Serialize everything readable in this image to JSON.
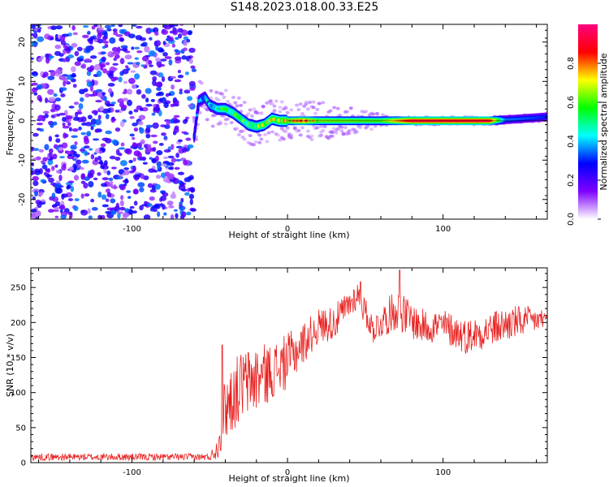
{
  "title": "S148.2023.018.00.33.E25",
  "chart_data": [
    {
      "type": "heatmap",
      "title": "",
      "xlabel": "Height of straight line (km)",
      "ylabel": "Frequency (Hz)",
      "xlim": [
        -165,
        167
      ],
      "ylim": [
        -25,
        24.5
      ],
      "x_ticks": [
        -100,
        0,
        100
      ],
      "y_ticks": [
        -20,
        -10,
        0,
        10,
        20
      ],
      "colorbar": {
        "label": "Normalized spectral amplitude",
        "range": [
          0,
          1
        ],
        "ticks": [
          0.0,
          0.2,
          0.4,
          0.6,
          0.8
        ],
        "tick_labels": [
          "0.0",
          "0.2",
          "0.4",
          "0.6",
          "0.8"
        ],
        "colors": [
          "#ffffff",
          "#7f00ff",
          "#0000ff",
          "#00ffff",
          "#00ff00",
          "#ffff00",
          "#ff0000",
          "#ff0080"
        ]
      },
      "noise_region": {
        "x_range": [
          -165,
          -60
        ],
        "freq_range": [
          -25,
          24.5
        ],
        "amplitude": 0.3
      },
      "ridge": [
        {
          "x": -60,
          "freq": -4
        },
        {
          "x": -57,
          "freq": 5
        },
        {
          "x": -53,
          "freq": 6
        },
        {
          "x": -50,
          "freq": 4
        },
        {
          "x": -45,
          "freq": 3
        },
        {
          "x": -40,
          "freq": 3
        },
        {
          "x": -35,
          "freq": 2
        },
        {
          "x": -30,
          "freq": 0.5
        },
        {
          "x": -25,
          "freq": -1
        },
        {
          "x": -20,
          "freq": -1.5
        },
        {
          "x": -15,
          "freq": -1
        },
        {
          "x": -10,
          "freq": 0.5
        },
        {
          "x": -5,
          "freq": 0
        },
        {
          "x": 0,
          "freq": 0
        },
        {
          "x": 20,
          "freq": 0
        },
        {
          "x": 60,
          "freq": 0
        },
        {
          "x": 100,
          "freq": 0
        },
        {
          "x": 130,
          "freq": 0
        },
        {
          "x": 150,
          "freq": 0.5
        },
        {
          "x": 167,
          "freq": 1
        }
      ],
      "ridge_amplitude": [
        {
          "x": -60,
          "amp": 0.3
        },
        {
          "x": -50,
          "amp": 0.45
        },
        {
          "x": -40,
          "amp": 0.55
        },
        {
          "x": -20,
          "amp": 0.6
        },
        {
          "x": 0,
          "amp": 0.7
        },
        {
          "x": 10,
          "amp": 0.85
        },
        {
          "x": 20,
          "amp": 0.65
        },
        {
          "x": 60,
          "amp": 0.6
        },
        {
          "x": 80,
          "amp": 0.9
        },
        {
          "x": 130,
          "amp": 0.9
        },
        {
          "x": 140,
          "amp": 0.35
        },
        {
          "x": 167,
          "amp": 0.3
        }
      ]
    },
    {
      "type": "line",
      "title": "",
      "xlabel": "Height of straight line (km)",
      "ylabel": "SNR (10 * v/v)",
      "xlim": [
        -165,
        167
      ],
      "ylim": [
        0,
        278
      ],
      "x_ticks": [
        -100,
        0,
        100
      ],
      "y_ticks": [
        0,
        50,
        100,
        150,
        200,
        250
      ],
      "color": "#e8201f",
      "envelope": [
        {
          "x": -165,
          "mean": 8,
          "spread": 5
        },
        {
          "x": -50,
          "mean": 8,
          "spread": 5
        },
        {
          "x": -45,
          "mean": 20,
          "spread": 15
        },
        {
          "x": -40,
          "mean": 80,
          "spread": 50
        },
        {
          "x": -30,
          "mean": 110,
          "spread": 50
        },
        {
          "x": -20,
          "mean": 120,
          "spread": 50
        },
        {
          "x": -10,
          "mean": 130,
          "spread": 40
        },
        {
          "x": 0,
          "mean": 145,
          "spread": 40
        },
        {
          "x": 10,
          "mean": 170,
          "spread": 30
        },
        {
          "x": 20,
          "mean": 195,
          "spread": 25
        },
        {
          "x": 30,
          "mean": 200,
          "spread": 25
        },
        {
          "x": 45,
          "mean": 240,
          "spread": 20
        },
        {
          "x": 55,
          "mean": 190,
          "spread": 20
        },
        {
          "x": 70,
          "mean": 220,
          "spread": 30
        },
        {
          "x": 85,
          "mean": 195,
          "spread": 25
        },
        {
          "x": 100,
          "mean": 195,
          "spread": 25
        },
        {
          "x": 115,
          "mean": 180,
          "spread": 25
        },
        {
          "x": 130,
          "mean": 190,
          "spread": 25
        },
        {
          "x": 145,
          "mean": 200,
          "spread": 25
        },
        {
          "x": 167,
          "mean": 205,
          "spread": 15
        }
      ],
      "peaks": [
        {
          "x": -42,
          "y": 168
        },
        {
          "x": 47,
          "y": 258
        },
        {
          "x": 72,
          "y": 275
        }
      ]
    }
  ]
}
